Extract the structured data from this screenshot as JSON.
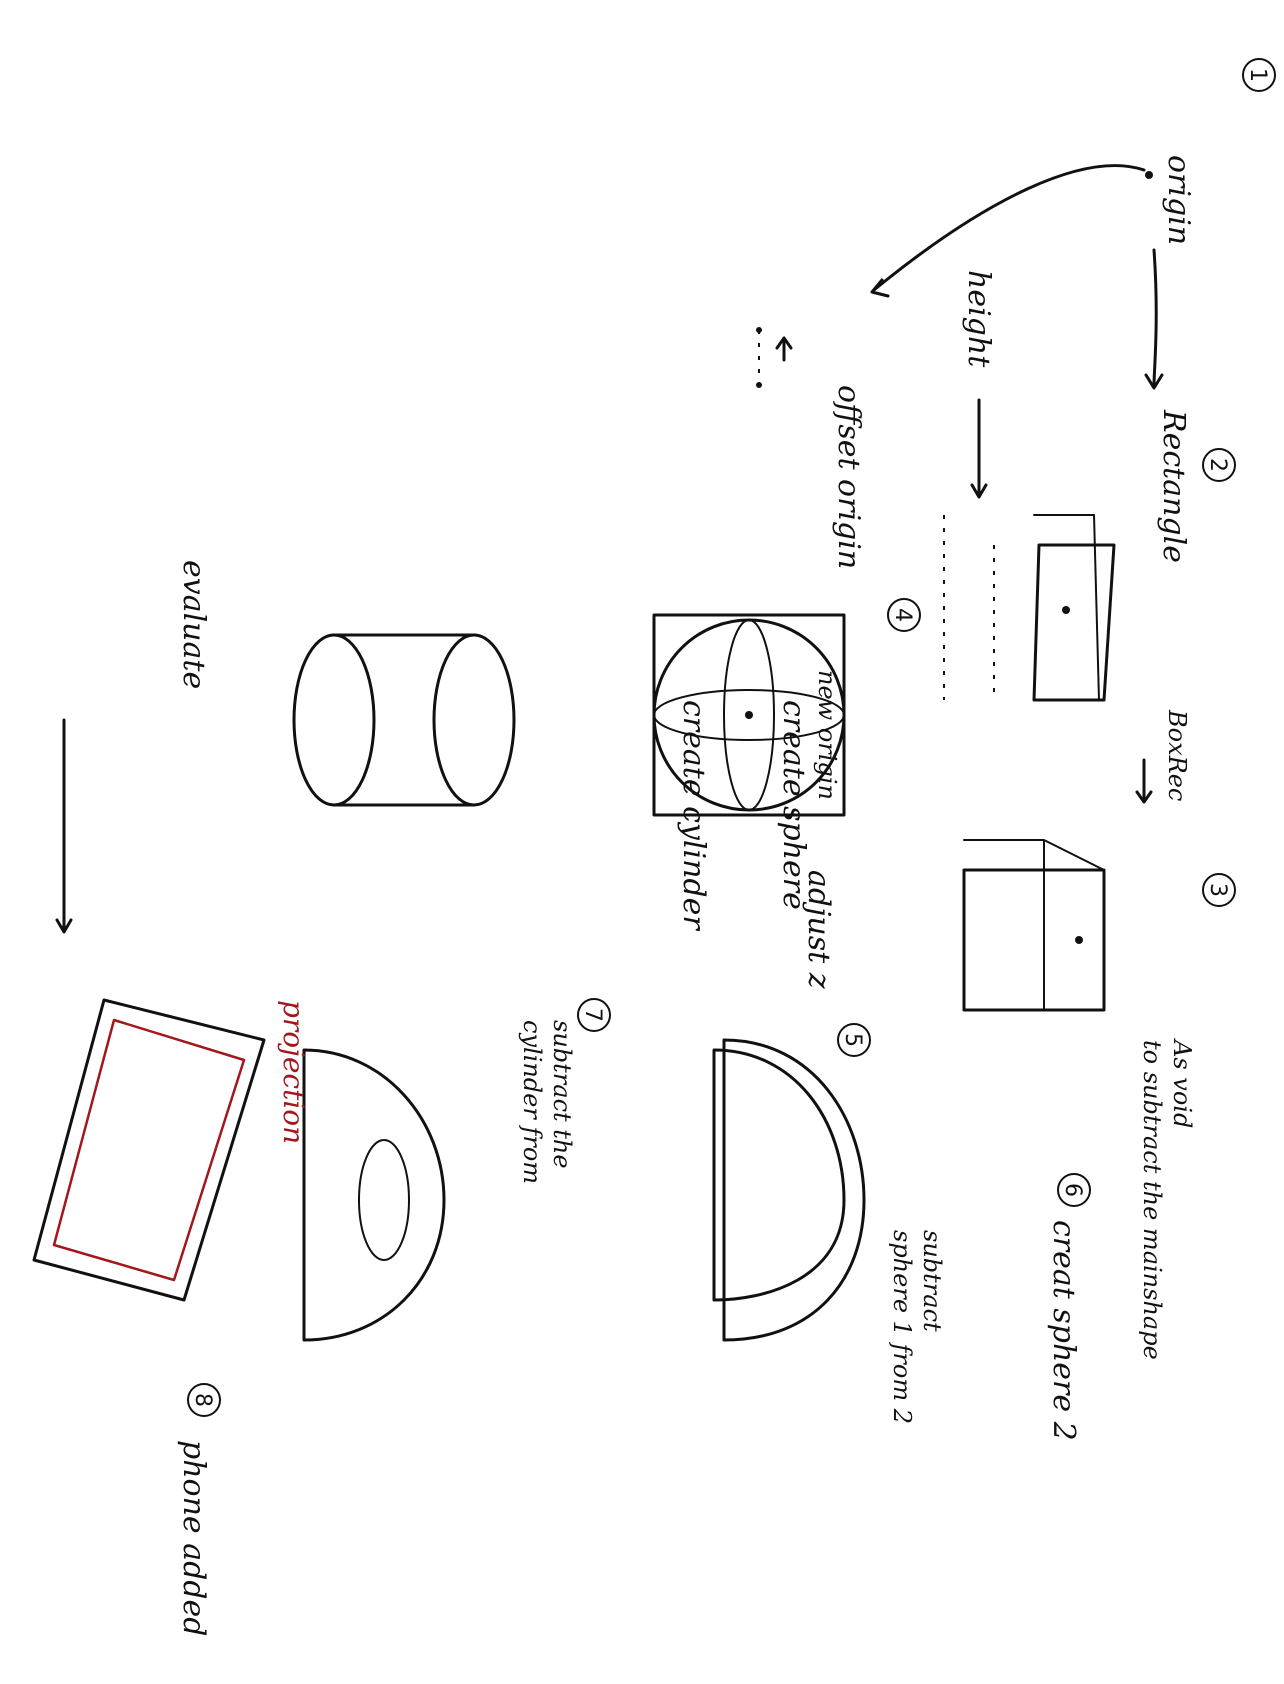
{
  "colors": {
    "ink": "#111111",
    "projection": "#a3171c",
    "paper": "#ffffff"
  },
  "steps": {
    "s1": {
      "number": "1",
      "label": "origin"
    },
    "s2": {
      "number": "2",
      "label": "Rectangle",
      "height": "height",
      "offset": "offset origin"
    },
    "s3": {
      "number": "3",
      "label": "BoxRec",
      "void_line1": "As void",
      "void_line2": "to subtract the mainshape"
    },
    "s4": {
      "number": "4",
      "label": "create sphere",
      "origin": "new origin",
      "adjust": "adjust z"
    },
    "s5": {
      "number": "5"
    },
    "s6": {
      "number": "6",
      "label": "creat sphere 2",
      "sub_line1": "subtract",
      "sub_line2": "sphere 1 from 2"
    },
    "s7": {
      "number": "7",
      "line1": "subtract the",
      "line2": "cylinder from"
    },
    "s8": {
      "number": "8",
      "label": "phone added",
      "projection": "projection"
    },
    "cylinder": {
      "label": "create cylinder"
    },
    "evaluate": {
      "label": "evaluate"
    }
  }
}
